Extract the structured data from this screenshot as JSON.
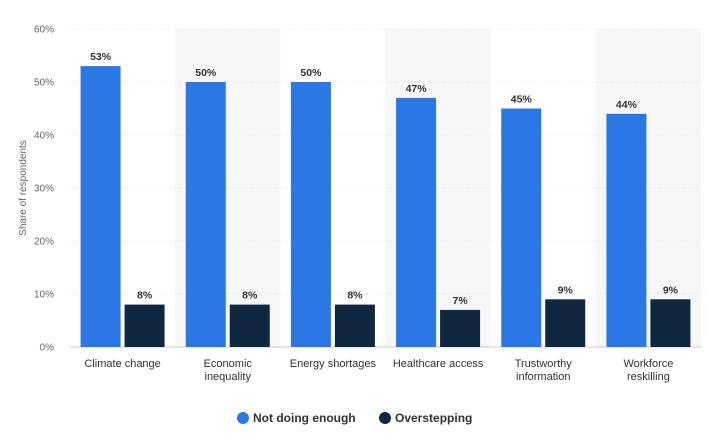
{
  "chart_data": {
    "type": "bar",
    "ylabel": "Share of respondents",
    "ylim": [
      0,
      60
    ],
    "yticks": [
      "0%",
      "10%",
      "20%",
      "30%",
      "40%",
      "50%",
      "60%"
    ],
    "grid": true,
    "legend_position": "bottom",
    "categories": [
      [
        "Climate change"
      ],
      [
        "Economic",
        "inequality"
      ],
      [
        "Energy shortages"
      ],
      [
        "Healthcare access"
      ],
      [
        "Trustworthy",
        "information"
      ],
      [
        "Workforce",
        "reskilling"
      ]
    ],
    "series": [
      {
        "name": "Not doing enough",
        "color": "#2b78e4",
        "values": [
          53,
          50,
          50,
          47,
          45,
          44
        ],
        "labels": [
          "53%",
          "50%",
          "50%",
          "47%",
          "45%",
          "44%"
        ]
      },
      {
        "name": "Overstepping",
        "color": "#0f2741",
        "values": [
          8,
          8,
          8,
          7,
          9,
          9
        ],
        "labels": [
          "8%",
          "8%",
          "8%",
          "7%",
          "9%",
          "9%"
        ]
      }
    ],
    "band_color": "#f7f7f7",
    "gridline_color": "#e6e6e6"
  }
}
